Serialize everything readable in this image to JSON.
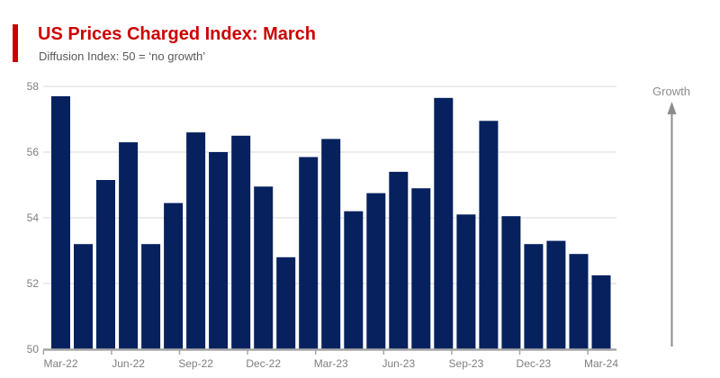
{
  "header": {
    "title": "US Prices Charged Index: March",
    "subtitle": "Diffusion Index: 50 = ‘no growth’",
    "accent_color": "#cc0000",
    "title_color": "#cc0000"
  },
  "annotation": {
    "growth_label": "Growth",
    "arrow_direction": "up",
    "color": "#8c8c8c"
  },
  "chart_data": {
    "type": "bar",
    "title": "US Prices Charged Index: March",
    "subtitle": "Diffusion Index: 50 = ‘no growth’",
    "categories": [
      "Mar-22",
      "Apr-22",
      "May-22",
      "Jun-22",
      "Jul-22",
      "Aug-22",
      "Sep-22",
      "Oct-22",
      "Nov-22",
      "Dec-22",
      "Jan-23",
      "Feb-23",
      "Mar-23",
      "Apr-23",
      "May-23",
      "Jun-23",
      "Jul-23",
      "Aug-23",
      "Sep-23",
      "Oct-23",
      "Nov-23",
      "Dec-23",
      "Jan-24",
      "Feb-24",
      "Mar-24"
    ],
    "values": [
      57.7,
      53.2,
      55.15,
      56.3,
      53.2,
      54.45,
      56.6,
      56.0,
      56.5,
      54.95,
      52.8,
      55.85,
      56.4,
      54.2,
      54.75,
      55.4,
      54.9,
      57.65,
      54.1,
      56.95,
      54.05,
      53.2,
      53.3,
      52.9,
      52.25
    ],
    "xlabel": "",
    "ylabel": "",
    "ylim": [
      50,
      58
    ],
    "yticks": [
      50,
      52,
      54,
      56,
      58
    ],
    "x_tick_labels_shown": [
      "Mar-22",
      "Jun-22",
      "Sep-22",
      "Dec-22",
      "Mar-23",
      "Jun-23",
      "Sep-23",
      "Dec-23",
      "Mar-24"
    ],
    "label_every": 3,
    "grid": true,
    "legend": false,
    "bar_color": "#06215e",
    "gridline_color": "#d9d9d9",
    "axis_color": "#a6a6a6",
    "tick_label_color": "#7f7f7f"
  }
}
